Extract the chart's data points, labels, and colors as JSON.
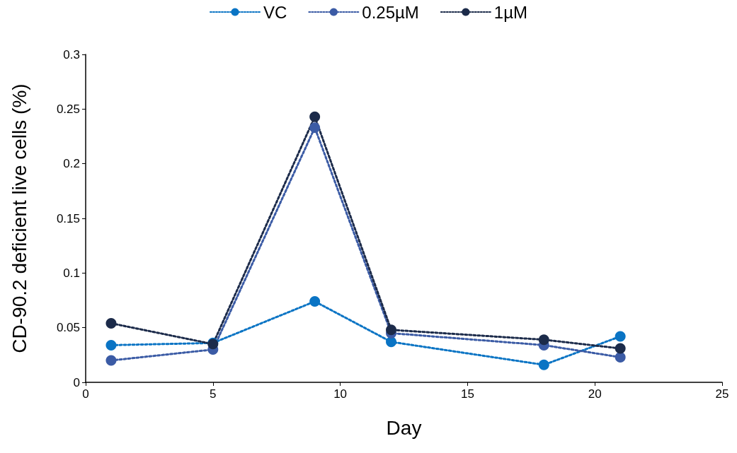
{
  "chart_data": {
    "type": "line",
    "xlabel": "Day",
    "ylabel": "CD-90.2 deficient live cells (%)",
    "x": [
      1,
      5,
      9,
      12,
      18,
      21
    ],
    "series": [
      {
        "name": "VC",
        "color": "#0a74c4",
        "values": [
          0.034,
          0.036,
          0.074,
          0.037,
          0.016,
          0.042
        ]
      },
      {
        "name": "0.25µM",
        "color": "#3b5ba5",
        "values": [
          0.02,
          0.03,
          0.233,
          0.045,
          0.034,
          0.023
        ]
      },
      {
        "name": "1µM",
        "color": "#1c2b4a",
        "values": [
          0.054,
          0.035,
          0.243,
          0.048,
          0.039,
          0.031
        ]
      }
    ],
    "xlim": [
      0,
      25
    ],
    "xticks": [
      0,
      5,
      10,
      15,
      20,
      25
    ],
    "ylim": [
      0,
      0.3
    ],
    "yticks": [
      0,
      0.05,
      0.1,
      0.15,
      0.2,
      0.25,
      0.3
    ],
    "grid": false,
    "legend": "top",
    "marker": "circle",
    "line_style": "dotted"
  }
}
